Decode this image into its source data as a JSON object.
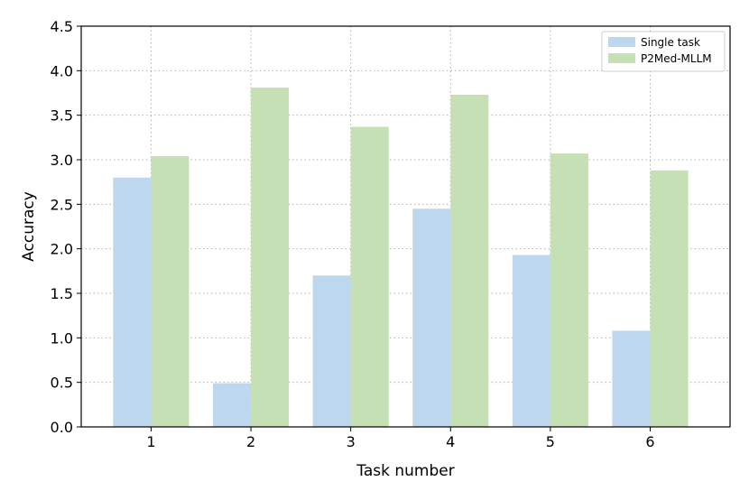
{
  "chart_data": {
    "type": "bar",
    "title": "",
    "xlabel": "Task number",
    "ylabel": "Accuracy",
    "categories": [
      "1",
      "2",
      "3",
      "4",
      "5",
      "6"
    ],
    "yticks": [
      "0.0",
      "0.5",
      "1.0",
      "1.5",
      "2.0",
      "2.5",
      "3.0",
      "3.5",
      "4.0",
      "4.5"
    ],
    "ylim": [
      0,
      4.5
    ],
    "grid": true,
    "legend_position": "top-right",
    "series": [
      {
        "name": "Single task",
        "color": "#bdd7ee",
        "values": [
          2.8,
          0.49,
          1.7,
          2.45,
          1.93,
          1.08
        ]
      },
      {
        "name": "P2Med-MLLM",
        "color": "#c5e0b4",
        "values": [
          3.04,
          3.81,
          3.37,
          3.73,
          3.07,
          2.88
        ]
      }
    ]
  }
}
